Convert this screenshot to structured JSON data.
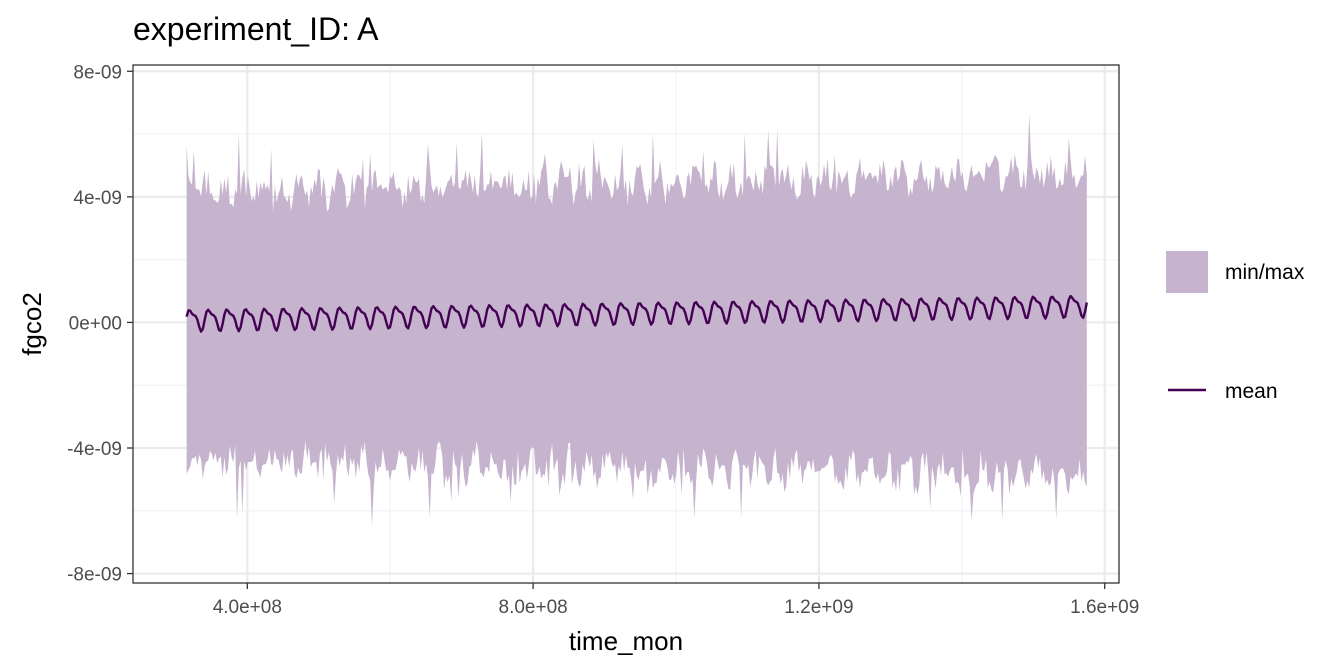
{
  "chart_data": {
    "type": "area",
    "title": "experiment_ID: A",
    "xlabel": "time_mon",
    "ylabel": "fgco2",
    "x_ticks": [
      "4.0e+08",
      "8.0e+08",
      "1.2e+09",
      "1.6e+09"
    ],
    "x_tick_values": [
      400000000,
      800000000,
      1200000000,
      1600000000
    ],
    "y_ticks": [
      "8e-09",
      "4e-09",
      "0e+00",
      "-4e-09",
      "-8e-09"
    ],
    "y_tick_values": [
      8e-09,
      4e-09,
      0,
      -4e-09,
      -8e-09
    ],
    "xlim": [
      240000000,
      1620000000
    ],
    "ylim": [
      -8.3e-09,
      8.2e-09
    ],
    "grid": true,
    "legend_position": "right",
    "x_range": [
      315000000,
      1575000000
    ],
    "ribbon_max_range": [
      2.6e-09,
      7.1e-09
    ],
    "ribbon_min_range": [
      -7.4e-09,
      -2.4e-09
    ],
    "mean_range": [
      -3e-10,
      1.1e-09
    ],
    "seasonal_cycle_count": 48,
    "series": [
      {
        "name": "min/max",
        "kind": "ribbon",
        "color": "#c6b3cd"
      },
      {
        "name": "mean",
        "kind": "line",
        "color": "#440154"
      }
    ]
  },
  "legend": {
    "items": [
      {
        "label": "min/max"
      },
      {
        "label": "mean"
      }
    ]
  },
  "colors": {
    "ribbon": "#c6b3cd",
    "mean_line": "#440154",
    "grid_major": "#ebebeb",
    "grid_minor": "#f2f2f2",
    "panel_border": "#333333"
  }
}
